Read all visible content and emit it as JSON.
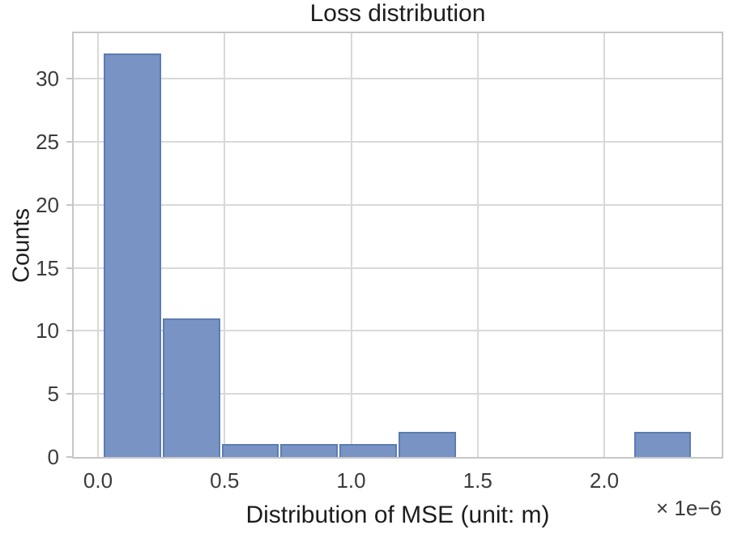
{
  "chart_data": {
    "type": "bar",
    "subtype": "histogram",
    "title": "Loss distribution",
    "xlabel": "Distribution of MSE (unit: m)",
    "ylabel": "Counts",
    "x_offset_text": "× 1e−6",
    "xlim": [
      -0.096,
      2.464
    ],
    "ylim": [
      0,
      33.6
    ],
    "xticks": [
      0.0,
      0.5,
      1.0,
      1.5,
      2.0
    ],
    "xtick_labels": [
      "0.0",
      "0.5",
      "1.0",
      "1.5",
      "2.0"
    ],
    "yticks": [
      0,
      5,
      10,
      15,
      20,
      25,
      30
    ],
    "ytick_labels": [
      "0",
      "5",
      "10",
      "15",
      "20",
      "25",
      "30"
    ],
    "x_scale_factor": "1e-6",
    "bin_edges": [
      0.02,
      0.253,
      0.485,
      0.718,
      0.951,
      1.183,
      1.416,
      1.649,
      1.881,
      2.114,
      2.347
    ],
    "counts": [
      32,
      11,
      1,
      1,
      1,
      2,
      0,
      0,
      0,
      2
    ],
    "grid": true,
    "legend": null,
    "colors": {
      "bar_fill": "#7893c4",
      "bar_edge": "#5c7cb2",
      "gridline": "#d9d9d9",
      "plot_border": "#c7c7c7",
      "tick_text": "#3b3b3b",
      "label_text": "#1d1d1d",
      "background": "#ffffff"
    }
  }
}
